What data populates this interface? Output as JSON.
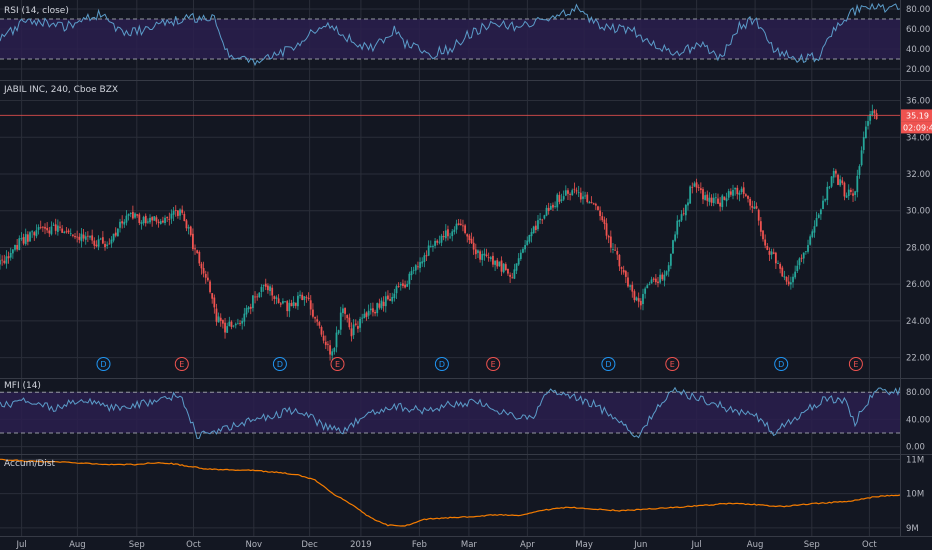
{
  "symbol": {
    "title": "JABIL INC, 240, Cboe BZX",
    "last_price_label": "35.19",
    "countdown_label": "02:09:41"
  },
  "colors": {
    "background": "#131722",
    "grid": "#2a2e39",
    "up": "#26a69a",
    "down": "#ef5350",
    "rsi_line": "#5b9cc9",
    "band_fill": "#2a1f4e",
    "band_line": "#9598a1",
    "price_marker": "#ef5350",
    "event_dividend": "#2196f3",
    "event_earnings": "#ef5350",
    "accum_line": "#f57c00",
    "separator": "#363a45"
  },
  "chart_data": [
    {
      "id": "rsi",
      "type": "line",
      "title": "RSI (14, close)",
      "ylim": [
        12,
        85
      ],
      "yticks": [
        "80.00",
        "60.00",
        "40.00",
        "20.00"
      ],
      "ytick_values": [
        80,
        60,
        40,
        20
      ],
      "bands": [
        70,
        30
      ],
      "keypoints": [
        [
          0,
          48
        ],
        [
          3,
          70
        ],
        [
          7,
          62
        ],
        [
          11,
          75
        ],
        [
          14,
          55
        ],
        [
          17,
          62
        ],
        [
          21,
          72
        ],
        [
          24,
          70
        ],
        [
          25,
          38
        ],
        [
          28,
          25
        ],
        [
          31,
          35
        ],
        [
          33,
          45
        ],
        [
          36,
          65
        ],
        [
          38,
          55
        ],
        [
          41,
          40
        ],
        [
          44,
          60
        ],
        [
          45,
          45
        ],
        [
          48,
          35
        ],
        [
          50,
          40
        ],
        [
          52,
          55
        ],
        [
          55,
          66
        ],
        [
          58,
          62
        ],
        [
          61,
          72
        ],
        [
          64,
          80
        ],
        [
          67,
          62
        ],
        [
          70,
          60
        ],
        [
          72,
          48
        ],
        [
          75,
          35
        ],
        [
          78,
          45
        ],
        [
          80,
          30
        ],
        [
          82,
          62
        ],
        [
          84,
          70
        ],
        [
          86,
          40
        ],
        [
          89,
          30
        ],
        [
          91,
          32
        ],
        [
          93,
          65
        ],
        [
          96,
          85
        ],
        [
          99,
          80
        ]
      ],
      "x_range": [
        0,
        100
      ]
    },
    {
      "id": "price",
      "type": "candlestick",
      "title": "JABIL INC, 240, Cboe BZX",
      "ylim": [
        21,
        36.9
      ],
      "yticks": [
        "36.00",
        "34.00",
        "32.00",
        "30.00",
        "28.00",
        "26.00",
        "24.00",
        "22.00"
      ],
      "ytick_values": [
        36,
        34,
        32,
        30,
        28,
        26,
        24,
        22
      ],
      "last_price": 35.19,
      "keypoints": [
        [
          0,
          27.1
        ],
        [
          2,
          28.2
        ],
        [
          4,
          28.9
        ],
        [
          6,
          29.0
        ],
        [
          8,
          28.7
        ],
        [
          10,
          28.4
        ],
        [
          12,
          28.1
        ],
        [
          14,
          29.7
        ],
        [
          16,
          29.5
        ],
        [
          18,
          29.6
        ],
        [
          20,
          29.9
        ],
        [
          21,
          28.8
        ],
        [
          22,
          27.3
        ],
        [
          23,
          26.2
        ],
        [
          24,
          24.2
        ],
        [
          25,
          23.6
        ],
        [
          27,
          24.2
        ],
        [
          29,
          25.9
        ],
        [
          30,
          25.7
        ],
        [
          32,
          24.7
        ],
        [
          34,
          25.5
        ],
        [
          35,
          24.1
        ],
        [
          36,
          22.9
        ],
        [
          37,
          22.2
        ],
        [
          38,
          24.6
        ],
        [
          39,
          23.4
        ],
        [
          41,
          24.4
        ],
        [
          43,
          25.2
        ],
        [
          45,
          26.0
        ],
        [
          47,
          27.5
        ],
        [
          49,
          28.6
        ],
        [
          51,
          29.1
        ],
        [
          52,
          28.7
        ],
        [
          53,
          27.6
        ],
        [
          55,
          27.2
        ],
        [
          57,
          26.5
        ],
        [
          58,
          27.8
        ],
        [
          60,
          29.6
        ],
        [
          62,
          30.7
        ],
        [
          64,
          31.1
        ],
        [
          66,
          30.2
        ],
        [
          67,
          29.3
        ],
        [
          68,
          28.1
        ],
        [
          69,
          26.8
        ],
        [
          70,
          25.8
        ],
        [
          71,
          24.8
        ],
        [
          72,
          25.9
        ],
        [
          74,
          26.6
        ],
        [
          75,
          28.9
        ],
        [
          76,
          30.1
        ],
        [
          77,
          31.5
        ],
        [
          78,
          30.8
        ],
        [
          80,
          30.5
        ],
        [
          82,
          31.2
        ],
        [
          84,
          30.0
        ],
        [
          85,
          28.2
        ],
        [
          86,
          27.4
        ],
        [
          87,
          26.6
        ],
        [
          88,
          26.0
        ],
        [
          89,
          27.5
        ],
        [
          90,
          28.4
        ],
        [
          91,
          30.0
        ],
        [
          92,
          31.2
        ],
        [
          92.6,
          32.1
        ],
        [
          93.4,
          31.4
        ],
        [
          94,
          30.9
        ],
        [
          95,
          31.1
        ],
        [
          95.6,
          32.6
        ],
        [
          96,
          34.4
        ],
        [
          96.8,
          35.6
        ],
        [
          97.4,
          35.19
        ]
      ],
      "x_range": [
        0,
        100
      ]
    },
    {
      "id": "mfi",
      "type": "line",
      "title": "MFI (14)",
      "ylim": [
        -8,
        98
      ],
      "yticks": [
        "80.00",
        "40.00",
        "0.00"
      ],
      "ytick_values": [
        80,
        40,
        0
      ],
      "bands": [
        80,
        20
      ],
      "keypoints": [
        [
          0,
          60
        ],
        [
          3,
          70
        ],
        [
          6,
          55
        ],
        [
          9,
          72
        ],
        [
          12,
          55
        ],
        [
          15,
          62
        ],
        [
          18,
          68
        ],
        [
          20,
          78
        ],
        [
          22,
          15
        ],
        [
          24,
          22
        ],
        [
          27,
          35
        ],
        [
          30,
          45
        ],
        [
          33,
          55
        ],
        [
          36,
          30
        ],
        [
          38,
          20
        ],
        [
          41,
          50
        ],
        [
          44,
          60
        ],
        [
          47,
          52
        ],
        [
          50,
          62
        ],
        [
          53,
          65
        ],
        [
          56,
          50
        ],
        [
          59,
          40
        ],
        [
          61,
          82
        ],
        [
          63,
          75
        ],
        [
          66,
          62
        ],
        [
          69,
          38
        ],
        [
          71,
          12
        ],
        [
          73,
          60
        ],
        [
          75,
          82
        ],
        [
          78,
          70
        ],
        [
          81,
          55
        ],
        [
          84,
          45
        ],
        [
          86,
          20
        ],
        [
          89,
          48
        ],
        [
          92,
          72
        ],
        [
          94,
          65
        ],
        [
          95,
          35
        ],
        [
          97,
          80
        ],
        [
          99,
          82
        ]
      ],
      "x_range": [
        0,
        100
      ]
    },
    {
      "id": "accum",
      "type": "line",
      "title": "Accum/Dist",
      "ylim": [
        8.85,
        11.1
      ],
      "yticks": [
        "11M",
        "10M",
        "9M"
      ],
      "ytick_values": [
        11,
        10,
        9
      ],
      "keypoints": [
        [
          0,
          11.0
        ],
        [
          3,
          10.95
        ],
        [
          6,
          10.93
        ],
        [
          9,
          10.9
        ],
        [
          12,
          10.85
        ],
        [
          15,
          10.85
        ],
        [
          17,
          10.9
        ],
        [
          19,
          10.88
        ],
        [
          21,
          10.8
        ],
        [
          23,
          10.72
        ],
        [
          25,
          10.7
        ],
        [
          28,
          10.68
        ],
        [
          31,
          10.62
        ],
        [
          33,
          10.55
        ],
        [
          35,
          10.4
        ],
        [
          37,
          10.0
        ],
        [
          39,
          9.7
        ],
        [
          41,
          9.32
        ],
        [
          43,
          9.08
        ],
        [
          45,
          9.05
        ],
        [
          47,
          9.25
        ],
        [
          49,
          9.28
        ],
        [
          52,
          9.32
        ],
        [
          55,
          9.38
        ],
        [
          58,
          9.36
        ],
        [
          60,
          9.5
        ],
        [
          63,
          9.6
        ],
        [
          66,
          9.55
        ],
        [
          69,
          9.5
        ],
        [
          72,
          9.55
        ],
        [
          75,
          9.6
        ],
        [
          78,
          9.65
        ],
        [
          81,
          9.72
        ],
        [
          84,
          9.68
        ],
        [
          87,
          9.62
        ],
        [
          90,
          9.7
        ],
        [
          93,
          9.75
        ],
        [
          95,
          9.8
        ],
        [
          97,
          9.9
        ],
        [
          99,
          9.95
        ]
      ],
      "x_range": [
        0,
        100
      ]
    }
  ],
  "x_axis": {
    "labels": [
      "Jul",
      "Aug",
      "Sep",
      "Oct",
      "Nov",
      "Dec",
      "2019",
      "Feb",
      "Mar",
      "Apr",
      "May",
      "Jun",
      "Jul",
      "Aug",
      "Sep",
      "Oct"
    ],
    "positions": [
      2.4,
      8.6,
      15.2,
      21.5,
      28.2,
      34.4,
      40.1,
      46.6,
      52.1,
      58.6,
      64.9,
      71.2,
      77.4,
      83.9,
      90.2,
      96.6
    ]
  },
  "events": [
    {
      "letter": "D",
      "kind": "dividend",
      "x": 11.5
    },
    {
      "letter": "E",
      "kind": "earnings",
      "x": 20.2
    },
    {
      "letter": "D",
      "kind": "dividend",
      "x": 31.1
    },
    {
      "letter": "E",
      "kind": "earnings",
      "x": 37.5
    },
    {
      "letter": "D",
      "kind": "dividend",
      "x": 49.1
    },
    {
      "letter": "E",
      "kind": "earnings",
      "x": 54.8
    },
    {
      "letter": "D",
      "kind": "dividend",
      "x": 67.6
    },
    {
      "letter": "E",
      "kind": "earnings",
      "x": 74.7
    },
    {
      "letter": "D",
      "kind": "dividend",
      "x": 86.8
    },
    {
      "letter": "E",
      "kind": "earnings",
      "x": 95.1
    }
  ]
}
